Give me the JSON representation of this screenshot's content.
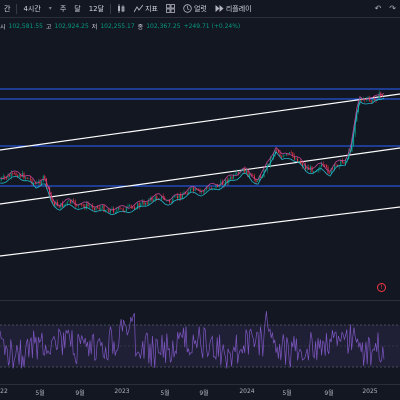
{
  "toolbar": {
    "interval_partial": "간",
    "interval_4h": "4시간",
    "week_label": "주",
    "month_label": "달",
    "months12_label": "12달",
    "indicators_label": "지표",
    "alert_label": "얼럿",
    "replay_label": "리플레이"
  },
  "ohlc": {
    "open_label": "시",
    "open_value": "102,581.55",
    "high_label": "고",
    "high_value": "102,924.25",
    "low_label": "저",
    "low_value": "102,255.17",
    "close_label": "종",
    "close_value": "102,367.25",
    "change": "+249.71 (+0.24%)"
  },
  "xaxis": {
    "labels": [
      "22",
      "5월",
      "9월",
      "2023",
      "5월",
      "9월",
      "2024",
      "5월",
      "9월",
      "2025"
    ]
  },
  "colors": {
    "background": "#131722",
    "candle_up": "#089981",
    "candle_down": "#f23645",
    "horizontal_lines": "#2962ff",
    "channel_lines": "#ffffff",
    "ma_fast": "#d04aa0",
    "ma_slow": "#26c6da",
    "rsi_line": "#7e57c2",
    "rsi_band": "#7e57c2"
  },
  "icons": {
    "chart_type": "candles-icon",
    "indicators": "indicators-icon",
    "layout": "layout-icon",
    "alert": "alert-icon",
    "replay": "replay-icon",
    "undo": "undo-icon",
    "redo": "redo-icon",
    "bell": "bell-outline-icon"
  }
}
